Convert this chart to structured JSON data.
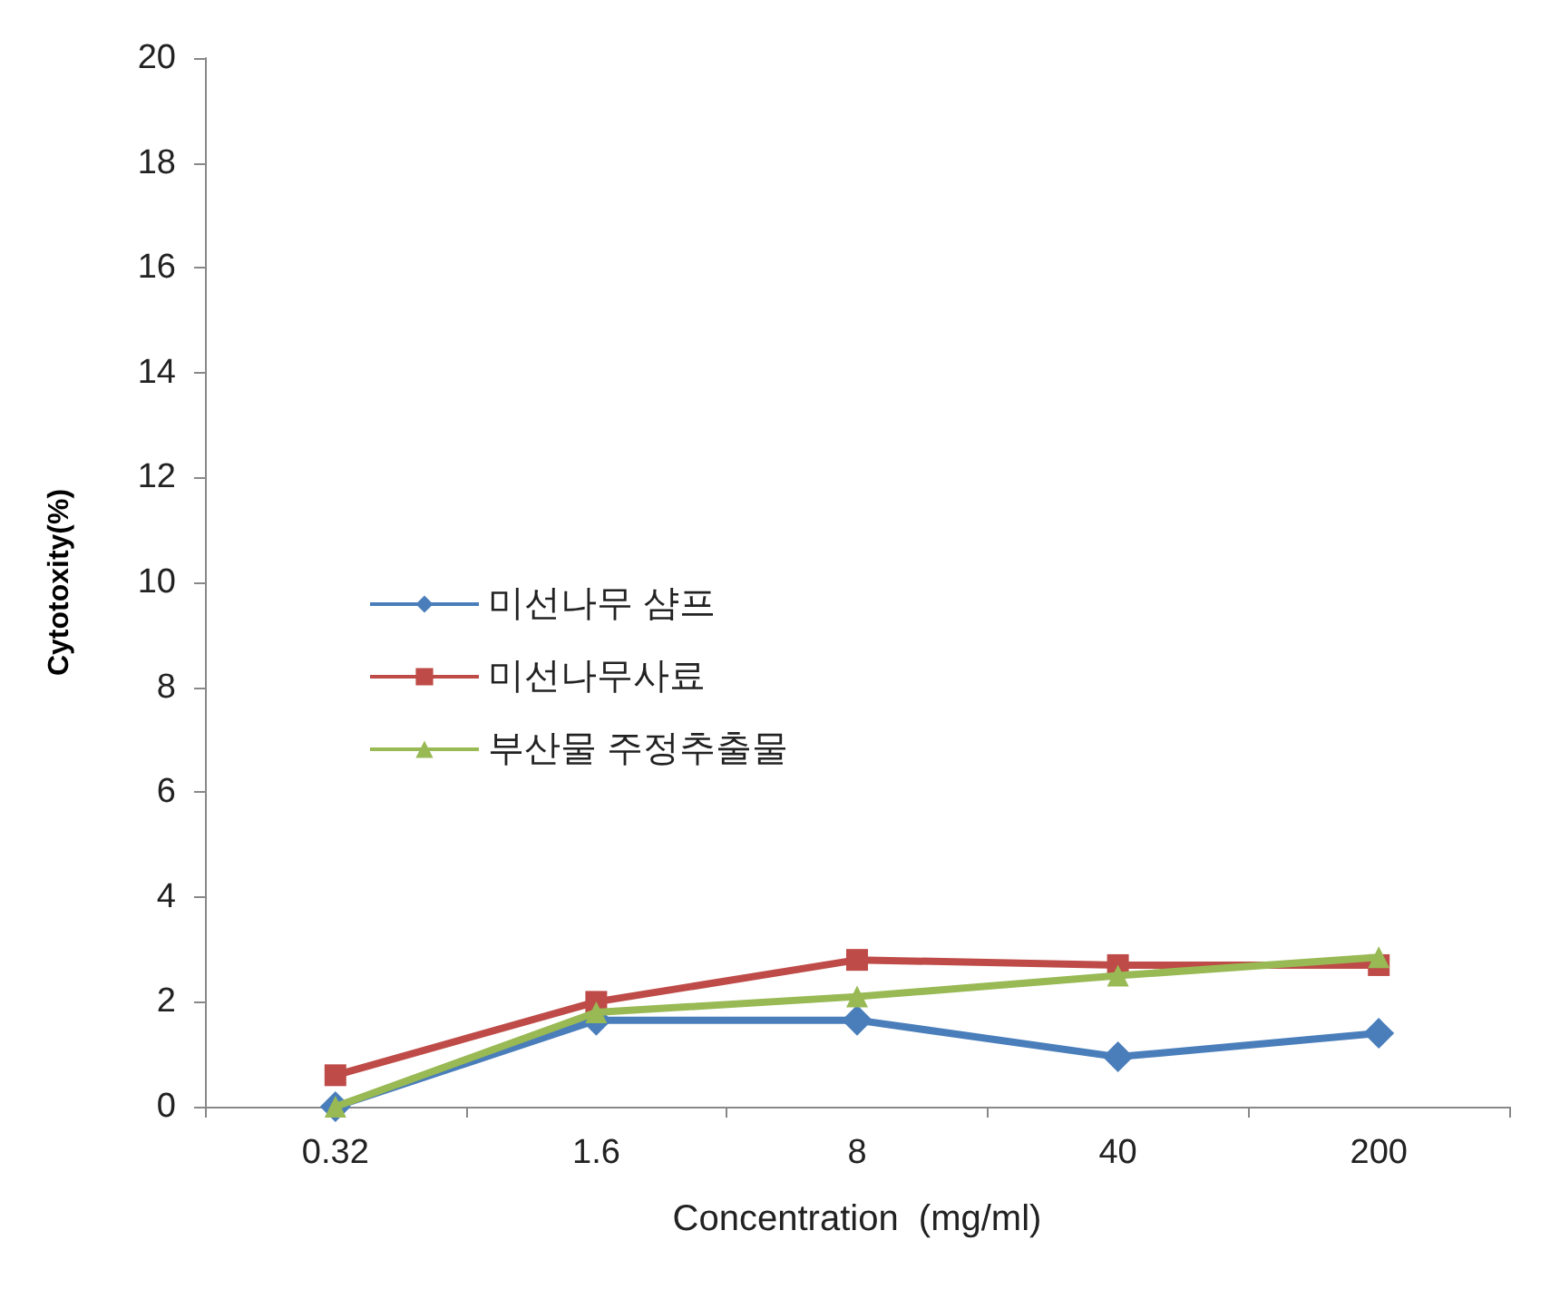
{
  "chart_data": {
    "type": "line",
    "xlabel": "Concentration  (mg/ml)",
    "ylabel": "Cytotoxity(%)",
    "categories": [
      "0.32",
      "1.6",
      "8",
      "40",
      "200"
    ],
    "ylim": [
      0,
      20
    ],
    "yticks": [
      0,
      2,
      4,
      6,
      8,
      10,
      12,
      14,
      16,
      18,
      20
    ],
    "grid": false,
    "legend": "center left",
    "series": [
      {
        "name": "미선나무 샴프",
        "color": "#4a7ebb",
        "marker": "diamond",
        "values": [
          0,
          1.65,
          1.65,
          0.95,
          1.4
        ]
      },
      {
        "name": "미선나무사료",
        "color": "#be4b48",
        "marker": "square",
        "values": [
          0.6,
          2.0,
          2.8,
          2.7,
          2.7
        ]
      },
      {
        "name": "부산물 주정추출물",
        "color": "#98b954",
        "marker": "triangle",
        "values": [
          0,
          1.8,
          2.1,
          2.5,
          2.85
        ]
      }
    ]
  }
}
